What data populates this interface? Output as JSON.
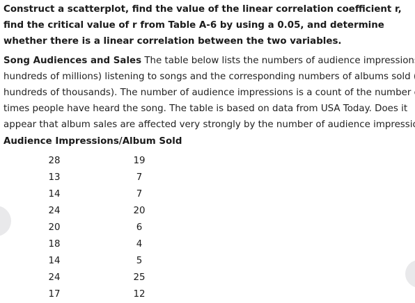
{
  "question": {
    "text": "Construct a scatterplot, find the value of the linear correlation coefficient r, find the critical value of r from Table A-6 by using a 0.05, and determine whether there is a linear correlation between the two variables."
  },
  "problem": {
    "title": "Song Audiences and Sales",
    "lines": [
      " The table below lists the numbers of audience impressions (in",
      "hundreds of millions) listening to songs and the corresponding numbers of albums sold (in",
      "hundreds of thousands). The number of audience impressions is a count of the number of",
      "times people have heard the song. The table is based on data from USA Today. Does it",
      "appear that album sales are affected very strongly by the number of audience impressions?"
    ]
  },
  "table": {
    "header": "Audience Impressions/Album Sold",
    "rows": [
      {
        "impressions": "28",
        "albums": "19"
      },
      {
        "impressions": "13",
        "albums": "7"
      },
      {
        "impressions": "14",
        "albums": "7"
      },
      {
        "impressions": "24",
        "albums": "20"
      },
      {
        "impressions": "20",
        "albums": "6"
      },
      {
        "impressions": "18",
        "albums": "4"
      },
      {
        "impressions": "14",
        "albums": "5"
      },
      {
        "impressions": "24",
        "albums": "25"
      },
      {
        "impressions": "17",
        "albums": "12"
      }
    ]
  },
  "nav": {
    "left_icon": "previous-circle",
    "right_icon": "next-circle"
  }
}
